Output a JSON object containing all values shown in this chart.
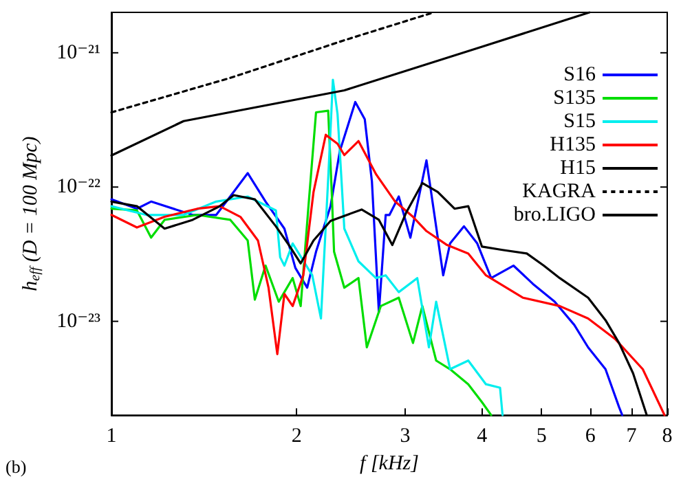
{
  "chart_data": {
    "type": "line",
    "xlabel": "f [kHz]",
    "ylabel": "h$_{eff}$ (D = 100 Mpc)",
    "annotations": [
      "(b)"
    ],
    "log": "xy",
    "grid": false,
    "legend": "top right",
    "marker": "none",
    "xlim": [
      1,
      8
    ],
    "xticks": [
      1,
      2,
      3,
      4,
      5,
      6,
      7,
      8
    ],
    "ylim": [
      2e-24,
      2e-21
    ],
    "yticks": [
      {
        "value": 1e-23,
        "label": "10⁻²³"
      },
      {
        "value": 1e-22,
        "label": "10⁻²²"
      },
      {
        "value": 1e-21,
        "label": "10⁻²¹"
      }
    ],
    "series": [
      {
        "name": "S16",
        "color": "#0000ff",
        "line_style": "solid",
        "x": [
          1.0,
          1.1,
          1.16,
          1.355,
          1.48,
          1.58,
          1.665,
          1.78,
          1.91,
          1.99,
          2.08,
          2.15,
          2.27,
          2.35,
          2.49,
          2.58,
          2.65,
          2.72,
          2.79,
          2.83,
          2.93,
          3.06,
          3.25,
          3.39,
          3.46,
          3.55,
          3.74,
          3.93,
          4.14,
          4.5,
          4.84,
          5.25,
          5.65,
          5.95,
          6.35,
          6.68,
          6.76
        ],
        "values": [
          8.1e-23,
          6.9e-23,
          7.8e-23,
          6.2e-23,
          6.2e-23,
          9.2e-23,
          1.27e-22,
          7.8e-23,
          4.9e-23,
          2.5e-23,
          1.78e-23,
          3.3e-23,
          7.2e-23,
          1.85e-22,
          4.3e-22,
          3.2e-22,
          1.1e-22,
          1.17e-23,
          6.2e-23,
          6.2e-23,
          8.5e-23,
          4.2e-23,
          1.58e-22,
          4.2e-23,
          2.2e-23,
          3.8e-23,
          5.1e-23,
          3.8e-23,
          2.1e-23,
          2.6e-23,
          1.9e-23,
          1.4e-23,
          9.4e-24,
          6.4e-24,
          4.4e-24,
          2.3e-24,
          2e-24
        ]
      },
      {
        "name": "S135",
        "color": "#00dd00",
        "line_style": "solid",
        "x": [
          1.0,
          1.1,
          1.16,
          1.22,
          1.38,
          1.56,
          1.665,
          1.71,
          1.78,
          1.87,
          1.97,
          2.03,
          2.09,
          2.15,
          2.25,
          2.28,
          2.3,
          2.39,
          2.52,
          2.6,
          2.74,
          2.93,
          3.09,
          3.2,
          3.37,
          3.55,
          3.8,
          4.0,
          4.14
        ],
        "values": [
          6.9e-23,
          6.7e-23,
          4.2e-23,
          5.7e-23,
          6.2e-23,
          5.7e-23,
          4e-23,
          1.45e-23,
          2.6e-23,
          1.4e-23,
          2.1e-23,
          1.3e-23,
          7.2e-23,
          3.6e-22,
          3.7e-22,
          9.2e-23,
          3.3e-23,
          1.78e-23,
          2.1e-23,
          6.4e-24,
          1.3e-23,
          1.5e-23,
          6.9e-24,
          1.3e-23,
          5.1e-24,
          4.4e-24,
          3.4e-24,
          2.5e-24,
          2e-24
        ]
      },
      {
        "name": "S15",
        "color": "#00eeee",
        "line_style": "solid",
        "x": [
          1.0,
          1.14,
          1.31,
          1.48,
          1.665,
          1.85,
          1.88,
          1.91,
          1.97,
          2.12,
          2.19,
          2.25,
          2.29,
          2.33,
          2.35,
          2.39,
          2.52,
          2.69,
          2.79,
          2.93,
          3.14,
          3.28,
          3.37,
          3.55,
          3.8,
          4.06,
          4.28,
          4.32
        ],
        "values": [
          7.2e-23,
          6.2e-23,
          6.2e-23,
          7.8e-23,
          8.5e-23,
          6.7e-23,
          3e-23,
          2.6e-23,
          3.8e-23,
          2.2e-23,
          1.05e-23,
          1.15e-22,
          6.3e-22,
          3.5e-22,
          1.85e-22,
          4.9e-23,
          2.8e-23,
          2.1e-23,
          2.2e-23,
          1.65e-23,
          2.1e-23,
          6.4e-24,
          1.4e-23,
          4.4e-24,
          5.1e-24,
          3.4e-24,
          3.2e-24,
          2e-24
        ]
      },
      {
        "name": "H135",
        "color": "#ff0000",
        "line_style": "solid",
        "x": [
          1.0,
          1.1,
          1.22,
          1.38,
          1.5,
          1.62,
          1.73,
          1.8,
          1.86,
          1.91,
          1.97,
          2.05,
          2.13,
          2.23,
          2.33,
          2.39,
          2.52,
          2.69,
          2.89,
          3.09,
          3.25,
          3.51,
          3.8,
          4.06,
          4.66,
          5.35,
          5.95,
          6.58,
          7.3,
          7.92
        ],
        "values": [
          6.2e-23,
          5e-23,
          6e-23,
          6.9e-23,
          7.2e-23,
          6e-23,
          4e-23,
          1.78e-23,
          5.7e-24,
          1.6e-23,
          1.3e-23,
          2.2e-23,
          9.2e-23,
          2.45e-22,
          2.1e-22,
          1.73e-22,
          2.2e-22,
          1.25e-22,
          7.8e-23,
          6e-23,
          4.7e-23,
          3.7e-23,
          3.2e-23,
          2.2e-23,
          1.5e-23,
          1.3e-23,
          1.05e-23,
          7.4e-24,
          4.4e-24,
          2e-24
        ]
      },
      {
        "name": "H15",
        "color": "#000000",
        "line_style": "solid",
        "x": [
          1.0,
          1.1,
          1.22,
          1.355,
          1.5,
          1.58,
          1.71,
          1.85,
          1.95,
          2.03,
          2.13,
          2.27,
          2.55,
          2.72,
          2.86,
          3.01,
          3.2,
          3.39,
          3.61,
          3.8,
          4.0,
          4.32,
          4.73,
          5.04,
          5.35,
          5.95,
          6.35,
          6.68,
          7.04,
          7.41
        ],
        "values": [
          7.8e-23,
          7.2e-23,
          4.9e-23,
          5.7e-23,
          7.2e-23,
          8.7e-23,
          8.1e-23,
          5.1e-23,
          3.6e-23,
          2.7e-23,
          4e-23,
          5.6e-23,
          6.8e-23,
          5.7e-23,
          3.7e-23,
          6.4e-23,
          1.07e-22,
          9.2e-23,
          6.9e-23,
          7.2e-23,
          3.6e-23,
          3.4e-23,
          3.2e-23,
          2.6e-23,
          2.1e-23,
          1.5e-23,
          1.02e-23,
          6.9e-24,
          4.1e-24,
          2e-24
        ]
      },
      {
        "name": "KAGRA",
        "color": "#000000",
        "line_style": "dotted",
        "x": [
          1.0,
          1.56,
          2.39,
          3.34
        ],
        "values": [
          3.6e-22,
          6.5e-22,
          1.24e-21,
          2e-21
        ]
      },
      {
        "name": "bro.LIGO",
        "color": "#000000",
        "line_style": "solid",
        "x": [
          1.0,
          1.31,
          2.39,
          4.0,
          5.98
        ],
        "values": [
          1.72e-22,
          3.1e-22,
          5.25e-22,
          1.11e-21,
          2e-21
        ]
      }
    ]
  }
}
